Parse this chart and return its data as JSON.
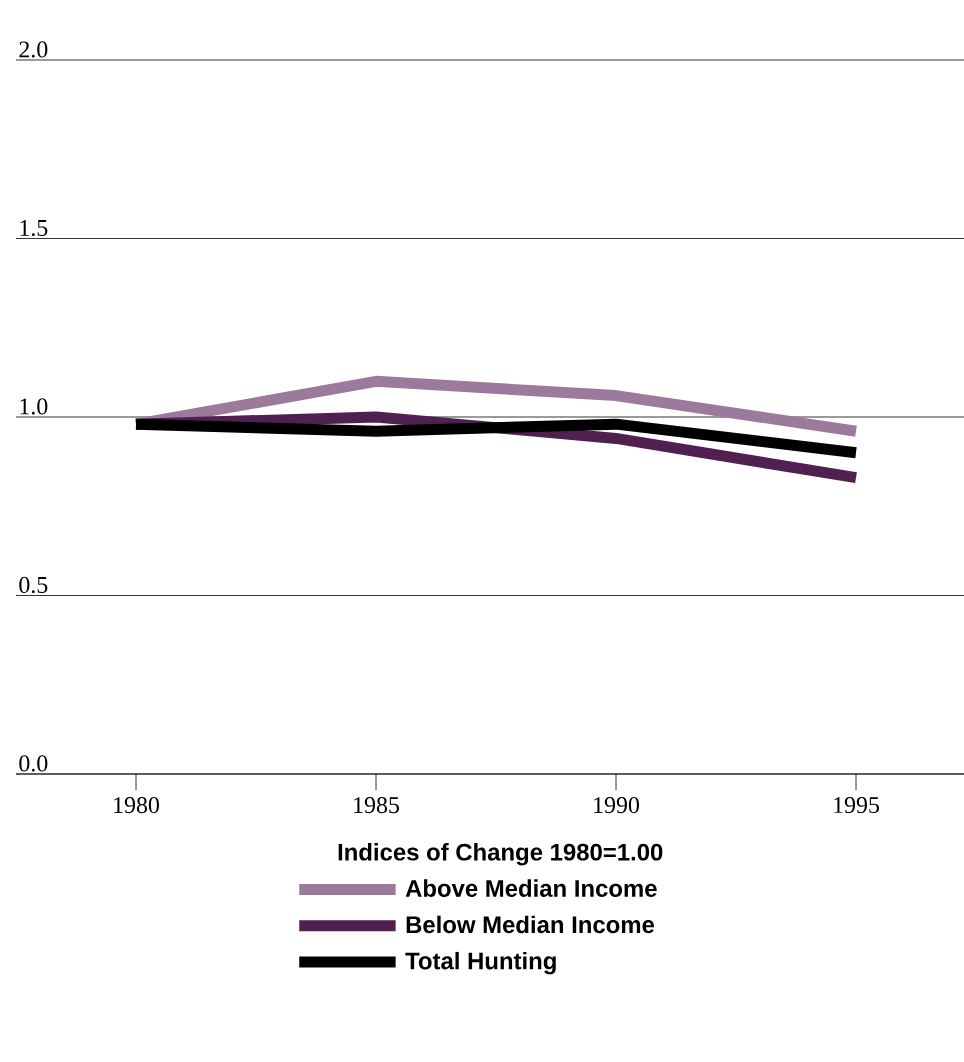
{
  "chart_data": {
    "type": "line",
    "legend_title": "Indices of Change 1980=1.00",
    "x": [
      1980,
      1985,
      1990,
      1995
    ],
    "xlim": [
      1977.5,
      1997.25
    ],
    "xticks": [
      1980,
      1985,
      1990,
      1995
    ],
    "ylim": [
      0,
      2
    ],
    "yticks": [
      {
        "value": 0,
        "label": "0.0"
      },
      {
        "value": 0.5,
        "label": "0.5"
      },
      {
        "value": 1,
        "label": "1.0"
      },
      {
        "value": 1.5,
        "label": "1.5"
      },
      {
        "value": 2,
        "label": "2.0"
      }
    ],
    "grid": "y",
    "legend": "bottom",
    "series": [
      {
        "name": "Above Median Income",
        "color": "#9b7a9c",
        "values": [
          0.98,
          1.1,
          1.06,
          0.96
        ]
      },
      {
        "name": "Below Median Income",
        "color": "#4f2050",
        "values": [
          0.98,
          1.0,
          0.94,
          0.83
        ]
      },
      {
        "name": "Total Hunting",
        "color": "#000000",
        "values": [
          0.98,
          0.96,
          0.98,
          0.9
        ]
      }
    ]
  }
}
